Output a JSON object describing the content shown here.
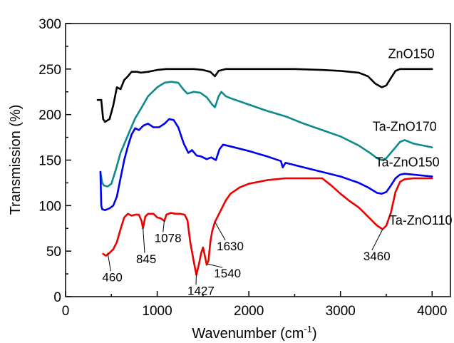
{
  "chart_data": {
    "type": "line",
    "xlabel": "Wavenumber (cm",
    "xlabel_sup": "-1",
    "xlabel_close": ")",
    "ylabel": "Transmission (%)",
    "xlim": [
      0,
      4200
    ],
    "ylim": [
      0,
      300
    ],
    "x_ticks": [
      0,
      1000,
      2000,
      3000,
      4000
    ],
    "y_ticks": [
      0,
      50,
      100,
      150,
      200,
      250,
      300
    ],
    "grid": false,
    "series": [
      {
        "name": "ZnO150",
        "color": "#000000",
        "points": [
          [
            350,
            216
          ],
          [
            390,
            216
          ],
          [
            410,
            195
          ],
          [
            430,
            192
          ],
          [
            480,
            195
          ],
          [
            520,
            210
          ],
          [
            560,
            230
          ],
          [
            600,
            228
          ],
          [
            640,
            238
          ],
          [
            680,
            242
          ],
          [
            720,
            247
          ],
          [
            780,
            247
          ],
          [
            820,
            246
          ],
          [
            900,
            247
          ],
          [
            1000,
            249
          ],
          [
            1100,
            250
          ],
          [
            1200,
            250
          ],
          [
            1300,
            250
          ],
          [
            1400,
            250
          ],
          [
            1500,
            249
          ],
          [
            1580,
            247
          ],
          [
            1630,
            242
          ],
          [
            1670,
            248
          ],
          [
            1750,
            250
          ],
          [
            2000,
            250
          ],
          [
            2500,
            250
          ],
          [
            2800,
            249
          ],
          [
            3000,
            248
          ],
          [
            3200,
            246
          ],
          [
            3300,
            242
          ],
          [
            3380,
            234
          ],
          [
            3450,
            230
          ],
          [
            3500,
            232
          ],
          [
            3550,
            240
          ],
          [
            3600,
            248
          ],
          [
            3650,
            250
          ],
          [
            4000,
            250
          ]
        ]
      },
      {
        "name": "Ta-ZnO170",
        "color": "#0e8a8a",
        "points": [
          [
            380,
            137
          ],
          [
            400,
            125
          ],
          [
            420,
            122
          ],
          [
            460,
            121
          ],
          [
            500,
            124
          ],
          [
            550,
            140
          ],
          [
            600,
            158
          ],
          [
            650,
            170
          ],
          [
            700,
            182
          ],
          [
            760,
            196
          ],
          [
            820,
            206
          ],
          [
            900,
            220
          ],
          [
            1000,
            230
          ],
          [
            1080,
            235
          ],
          [
            1150,
            236
          ],
          [
            1230,
            235
          ],
          [
            1290,
            227
          ],
          [
            1330,
            223
          ],
          [
            1400,
            225
          ],
          [
            1470,
            224
          ],
          [
            1540,
            219
          ],
          [
            1600,
            211
          ],
          [
            1630,
            208
          ],
          [
            1670,
            220
          ],
          [
            1700,
            225
          ],
          [
            1750,
            220
          ],
          [
            1800,
            218
          ],
          [
            2000,
            211
          ],
          [
            2200,
            204
          ],
          [
            2400,
            198
          ],
          [
            2600,
            190
          ],
          [
            2800,
            183
          ],
          [
            3000,
            176
          ],
          [
            3200,
            166
          ],
          [
            3320,
            158
          ],
          [
            3400,
            152
          ],
          [
            3450,
            150
          ],
          [
            3500,
            152
          ],
          [
            3550,
            158
          ],
          [
            3600,
            164
          ],
          [
            3650,
            170
          ],
          [
            3700,
            172
          ],
          [
            3800,
            168
          ],
          [
            4000,
            164
          ]
        ]
      },
      {
        "name": "Ta-ZnO150",
        "color": "#0000ee",
        "points": [
          [
            380,
            137
          ],
          [
            390,
            100
          ],
          [
            400,
            96
          ],
          [
            430,
            95
          ],
          [
            480,
            97
          ],
          [
            520,
            100
          ],
          [
            560,
            110
          ],
          [
            600,
            130
          ],
          [
            640,
            150
          ],
          [
            680,
            165
          ],
          [
            720,
            178
          ],
          [
            760,
            185
          ],
          [
            800,
            183
          ],
          [
            850,
            188
          ],
          [
            900,
            190
          ],
          [
            960,
            186
          ],
          [
            1020,
            186
          ],
          [
            1080,
            190
          ],
          [
            1130,
            195
          ],
          [
            1180,
            194
          ],
          [
            1230,
            186
          ],
          [
            1290,
            168
          ],
          [
            1340,
            158
          ],
          [
            1380,
            161
          ],
          [
            1430,
            155
          ],
          [
            1480,
            154
          ],
          [
            1540,
            151
          ],
          [
            1590,
            153
          ],
          [
            1640,
            150
          ],
          [
            1680,
            162
          ],
          [
            1720,
            167
          ],
          [
            1800,
            165
          ],
          [
            2000,
            160
          ],
          [
            2200,
            154
          ],
          [
            2350,
            149
          ],
          [
            2370,
            142
          ],
          [
            2400,
            147
          ],
          [
            2600,
            142
          ],
          [
            2800,
            137
          ],
          [
            3000,
            132
          ],
          [
            3200,
            125
          ],
          [
            3300,
            120
          ],
          [
            3400,
            114
          ],
          [
            3450,
            113
          ],
          [
            3500,
            115
          ],
          [
            3550,
            122
          ],
          [
            3600,
            130
          ],
          [
            3650,
            134
          ],
          [
            3700,
            135
          ],
          [
            3800,
            134
          ],
          [
            4000,
            132
          ]
        ]
      },
      {
        "name": "Ta-ZnO110",
        "color": "#ee0000",
        "points": [
          [
            410,
            47
          ],
          [
            440,
            45
          ],
          [
            480,
            48
          ],
          [
            520,
            52
          ],
          [
            560,
            60
          ],
          [
            600,
            74
          ],
          [
            640,
            87
          ],
          [
            680,
            91
          ],
          [
            720,
            89
          ],
          [
            760,
            90
          ],
          [
            800,
            90
          ],
          [
            830,
            83
          ],
          [
            845,
            75
          ],
          [
            870,
            88
          ],
          [
            900,
            91
          ],
          [
            960,
            91
          ],
          [
            1000,
            87
          ],
          [
            1040,
            86
          ],
          [
            1078,
            83
          ],
          [
            1100,
            90
          ],
          [
            1150,
            92
          ],
          [
            1200,
            91
          ],
          [
            1250,
            91
          ],
          [
            1300,
            90
          ],
          [
            1330,
            84
          ],
          [
            1360,
            60
          ],
          [
            1400,
            38
          ],
          [
            1427,
            24
          ],
          [
            1450,
            33
          ],
          [
            1480,
            48
          ],
          [
            1500,
            54
          ],
          [
            1520,
            45
          ],
          [
            1540,
            35
          ],
          [
            1560,
            40
          ],
          [
            1580,
            60
          ],
          [
            1600,
            72
          ],
          [
            1630,
            82
          ],
          [
            1660,
            88
          ],
          [
            1700,
            96
          ],
          [
            1750,
            106
          ],
          [
            1800,
            113
          ],
          [
            1900,
            120
          ],
          [
            2000,
            124
          ],
          [
            2200,
            128
          ],
          [
            2400,
            130
          ],
          [
            2600,
            130
          ],
          [
            2800,
            130
          ],
          [
            2900,
            122
          ],
          [
            3000,
            113
          ],
          [
            3100,
            105
          ],
          [
            3200,
            98
          ],
          [
            3300,
            88
          ],
          [
            3400,
            78
          ],
          [
            3460,
            74
          ],
          [
            3500,
            78
          ],
          [
            3550,
            92
          ],
          [
            3600,
            115
          ],
          [
            3650,
            126
          ],
          [
            3700,
            129
          ],
          [
            3800,
            130
          ],
          [
            4000,
            130
          ]
        ]
      }
    ],
    "series_labels": [
      {
        "text": "ZnO150",
        "x": 3520,
        "y": 262
      },
      {
        "text": "Ta-ZnO170",
        "x": 3350,
        "y": 182
      },
      {
        "text": "Ta-ZnO150",
        "x": 3380,
        "y": 143
      },
      {
        "text": "Ta-ZnO110",
        "x": 3530,
        "y": 79
      }
    ],
    "annotations": [
      {
        "text": "460",
        "anchor": [
          460,
          48
        ],
        "label": [
          400,
          17
        ]
      },
      {
        "text": "845",
        "anchor": [
          845,
          75
        ],
        "label": [
          770,
          37
        ]
      },
      {
        "text": "1078",
        "anchor": [
          1078,
          84
        ],
        "label": [
          970,
          60
        ]
      },
      {
        "text": "1427",
        "anchor": [
          1427,
          26
        ],
        "label": [
          1330,
          2
        ]
      },
      {
        "text": "1540",
        "anchor": [
          1545,
          36
        ],
        "label": [
          1620,
          21
        ]
      },
      {
        "text": "1630",
        "anchor": [
          1630,
          82
        ],
        "label": [
          1650,
          51
        ]
      },
      {
        "text": "3460",
        "anchor": [
          3460,
          74
        ],
        "label": [
          3250,
          40
        ]
      }
    ]
  }
}
